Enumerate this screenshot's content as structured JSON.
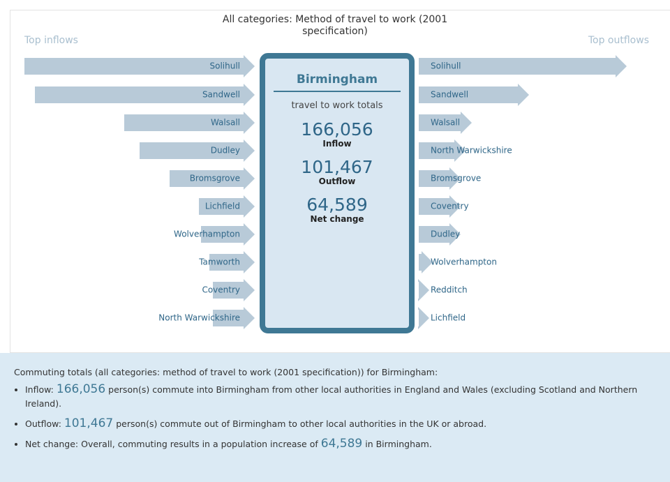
{
  "title": "All categories: Method of travel to work (2001 specification)",
  "left_heading": "Top inflows",
  "right_heading": "Top outflows",
  "inflows": [
    "Solihull",
    "Sandwell",
    "Walsall",
    "Dudley",
    "Bromsgrove",
    "Lichfield",
    "Wolverhampton",
    "Tamworth",
    "Coventry",
    "North Warwickshire"
  ],
  "outflows": [
    "Solihull",
    "Sandwell",
    "Walsall",
    "North Warwickshire",
    "Bromsgrove",
    "Coventry",
    "Dudley",
    "Wolverhampton",
    "Redditch",
    "Lichfield"
  ],
  "center": {
    "name": "Birmingham",
    "subtitle": "travel to work totals",
    "stats": [
      {
        "value": "166,056",
        "label": "Inflow"
      },
      {
        "value": "101,467",
        "label": "Outflow"
      },
      {
        "value": "64,589",
        "label": "Net change"
      }
    ]
  },
  "summary": {
    "intro": "Commuting totals (all categories: method of travel to work (2001 specification)) for Birmingham:",
    "bullets": [
      {
        "prefix": "Inflow:",
        "number": "166,056",
        "suffix": "person(s) commute into Birmingham from other local authorities in England and Wales (excluding Scotland and Northern Ireland)."
      },
      {
        "prefix": "Outflow:",
        "number": "101,467",
        "suffix": "person(s) commute out of Birmingham to other local authorities in the UK or abroad."
      },
      {
        "prefix": "Net change: Overall, commuting results in a population increase of",
        "number": "64,589",
        "suffix": "in Birmingham."
      }
    ]
  }
}
